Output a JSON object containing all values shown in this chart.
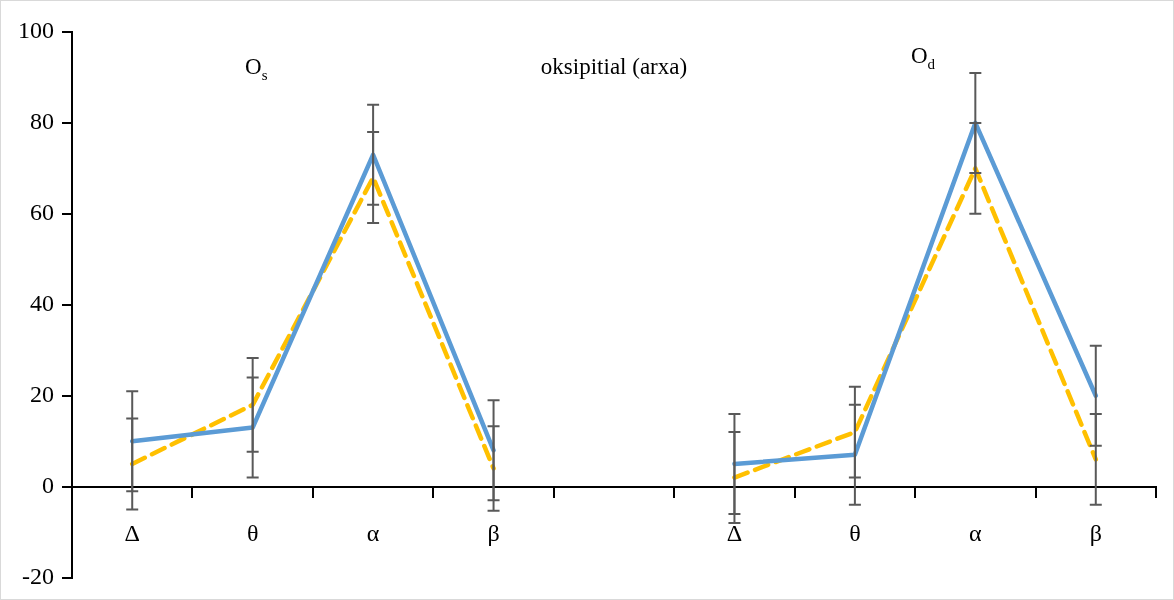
{
  "chart_data": {
    "type": "line",
    "categories": [
      "Δ",
      "θ",
      "α",
      "β",
      null,
      "Δ",
      "θ",
      "α",
      "β"
    ],
    "series": [
      {
        "color": "#5b9bd5",
        "line_style": "solid",
        "values": [
          10,
          13,
          73,
          8,
          null,
          5,
          7,
          80,
          20
        ],
        "errors": [
          11,
          11,
          11,
          11,
          null,
          11,
          11,
          11,
          11
        ]
      },
      {
        "color": "#ffc000",
        "line_style": "dashed",
        "values": [
          5,
          18,
          68,
          4,
          null,
          2,
          12,
          70,
          6
        ],
        "errors": [
          10,
          10.3,
          10,
          9.3,
          null,
          10,
          10,
          10,
          10
        ]
      }
    ],
    "ylim": [
      -20,
      100
    ],
    "yticks": [
      -20,
      0,
      20,
      40,
      60,
      80,
      100
    ],
    "grid": false,
    "legend": false,
    "marker": "none",
    "annotations": [
      "O$_{s}$",
      "oksipitial (arxa)",
      "O$_{d}$"
    ]
  }
}
